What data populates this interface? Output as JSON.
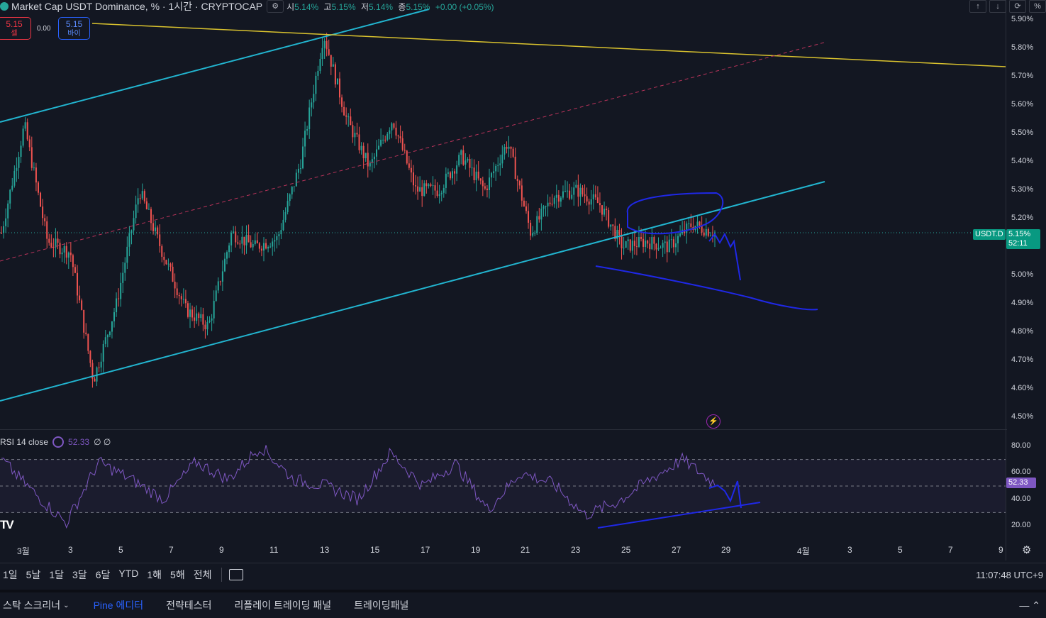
{
  "header": {
    "title": "Market Cap USDT Dominance, %",
    "interval": "1시간",
    "source": "CRYPTOCAP",
    "gear_icon": "settings-icon",
    "ohlc": {
      "o_label": "시",
      "o_value": "5.14%",
      "h_label": "고",
      "h_value": "5.15%",
      "l_label": "저",
      "l_value": "5.14%",
      "c_label": "종",
      "c_value": "5.15%",
      "change": "+0.00 (+0.05%)"
    }
  },
  "trade": {
    "sell_price": "5.15",
    "sell_label": "셀",
    "spread": "0.00",
    "buy_price": "5.15",
    "buy_label": "바이"
  },
  "right_controls": {
    "up_icon": "arrow-up-icon",
    "down_icon": "arrow-down-icon",
    "toggle_icon": "loop-icon",
    "percent_label": "%"
  },
  "price_axis": {
    "ticks": [
      "5.90%",
      "5.80%",
      "5.70%",
      "5.60%",
      "5.50%",
      "5.40%",
      "5.30%",
      "5.20%",
      "5.00%",
      "4.90%",
      "4.80%",
      "4.70%",
      "4.60%",
      "4.50%"
    ],
    "ticks_value": [
      5.9,
      5.8,
      5.7,
      5.6,
      5.5,
      5.4,
      5.3,
      5.2,
      5.0,
      4.9,
      4.8,
      4.7,
      4.6,
      4.5
    ],
    "symbol_tag": "USDT.D",
    "price_tag": "5.15%",
    "countdown": "52:11"
  },
  "rsi": {
    "label": "RSI 14 close",
    "value": "52.33",
    "extra": "∅ ∅",
    "axis_ticks": [
      "80.00",
      "60.00",
      "40.00",
      "20.00"
    ],
    "axis_values": [
      80,
      60,
      40,
      20
    ],
    "upper_band": 70,
    "lower_band": 30,
    "value_tag": "52.33"
  },
  "time_axis": {
    "labels": [
      "3월",
      "3",
      "5",
      "7",
      "9",
      "11",
      "13",
      "15",
      "17",
      "19",
      "21",
      "23",
      "25",
      "27",
      "29",
      "4월",
      "3",
      "5",
      "7",
      "9"
    ]
  },
  "timeframes": [
    "1일",
    "5날",
    "1달",
    "3달",
    "6달",
    "YTD",
    "1해",
    "5해",
    "전체"
  ],
  "clock": "11:07:48 UTC+9",
  "bottom_tabs": [
    {
      "label": "스탁 스크리너",
      "active": false
    },
    {
      "label": "Pine 에디터",
      "active": true
    },
    {
      "label": "전략테스터",
      "active": false
    },
    {
      "label": "리플레이 트레이딩 패널",
      "active": false
    },
    {
      "label": "트레이딩패널",
      "active": false
    }
  ],
  "chart_data": {
    "type": "line",
    "symbol": "USDT.D",
    "price_axis_range": [
      4.45,
      5.93
    ],
    "rsi_range": [
      15,
      85
    ],
    "colors": {
      "up": "#26a69a",
      "down": "#ef5350",
      "channel": "#22b5d0",
      "yellow": "#d9c22e",
      "dashed": "#b8335a",
      "drawing": "#1f28e6",
      "rsi": "#7e57c2"
    },
    "approx_close_path": [
      {
        "t": "3월 1",
        "v": 5.15
      },
      {
        "t": "3월 1",
        "v": 5.53
      },
      {
        "t": "3월 2",
        "v": 5.12
      },
      {
        "t": "3월 3",
        "v": 5.08
      },
      {
        "t": "3월 3",
        "v": 4.63
      },
      {
        "t": "3월 4",
        "v": 4.9
      },
      {
        "t": "3월 5",
        "v": 5.3
      },
      {
        "t": "3월 5",
        "v": 5.08
      },
      {
        "t": "3월 6",
        "v": 4.88
      },
      {
        "t": "3월 7",
        "v": 4.82
      },
      {
        "t": "3월 8",
        "v": 5.15
      },
      {
        "t": "3월 9",
        "v": 5.1
      },
      {
        "t": "3월 10",
        "v": 5.13
      },
      {
        "t": "3월 10",
        "v": 5.4
      },
      {
        "t": "3월 11",
        "v": 5.85
      },
      {
        "t": "3월 12",
        "v": 5.55
      },
      {
        "t": "3월 13",
        "v": 5.38
      },
      {
        "t": "3월 14",
        "v": 5.55
      },
      {
        "t": "3월 15",
        "v": 5.3
      },
      {
        "t": "3월 16",
        "v": 5.3
      },
      {
        "t": "3월 17",
        "v": 5.42
      },
      {
        "t": "3월 18",
        "v": 5.3
      },
      {
        "t": "3월 19",
        "v": 5.47
      },
      {
        "t": "3월 20",
        "v": 5.15
      },
      {
        "t": "3월 21",
        "v": 5.28
      },
      {
        "t": "3월 22",
        "v": 5.3
      },
      {
        "t": "3월 23",
        "v": 5.25
      },
      {
        "t": "3월 24",
        "v": 5.1
      },
      {
        "t": "3월 25",
        "v": 5.12
      },
      {
        "t": "3월 26",
        "v": 5.1
      },
      {
        "t": "3월 27",
        "v": 5.18
      },
      {
        "t": "3월 28",
        "v": 5.15
      }
    ],
    "approx_rsi_path": [
      {
        "t": "3월 1",
        "v": 70
      },
      {
        "t": "3월 2",
        "v": 45
      },
      {
        "t": "3월 3",
        "v": 22
      },
      {
        "t": "3월 4",
        "v": 68
      },
      {
        "t": "3월 5",
        "v": 55
      },
      {
        "t": "3월 6",
        "v": 40
      },
      {
        "t": "3월 8",
        "v": 68
      },
      {
        "t": "3월 9",
        "v": 55
      },
      {
        "t": "3월 10",
        "v": 80
      },
      {
        "t": "3월 12",
        "v": 55
      },
      {
        "t": "3월 13",
        "v": 50
      },
      {
        "t": "3월 15",
        "v": 40
      },
      {
        "t": "3월 17",
        "v": 75
      },
      {
        "t": "3월 18",
        "v": 50
      },
      {
        "t": "3월 19",
        "v": 67
      },
      {
        "t": "3월 20",
        "v": 32
      },
      {
        "t": "3월 21",
        "v": 60
      },
      {
        "t": "3월 23",
        "v": 52
      },
      {
        "t": "3월 24",
        "v": 28
      },
      {
        "t": "3월 25",
        "v": 38
      },
      {
        "t": "3월 26",
        "v": 55
      },
      {
        "t": "3월 27",
        "v": 70
      },
      {
        "t": "3월 28",
        "v": 52
      }
    ]
  }
}
